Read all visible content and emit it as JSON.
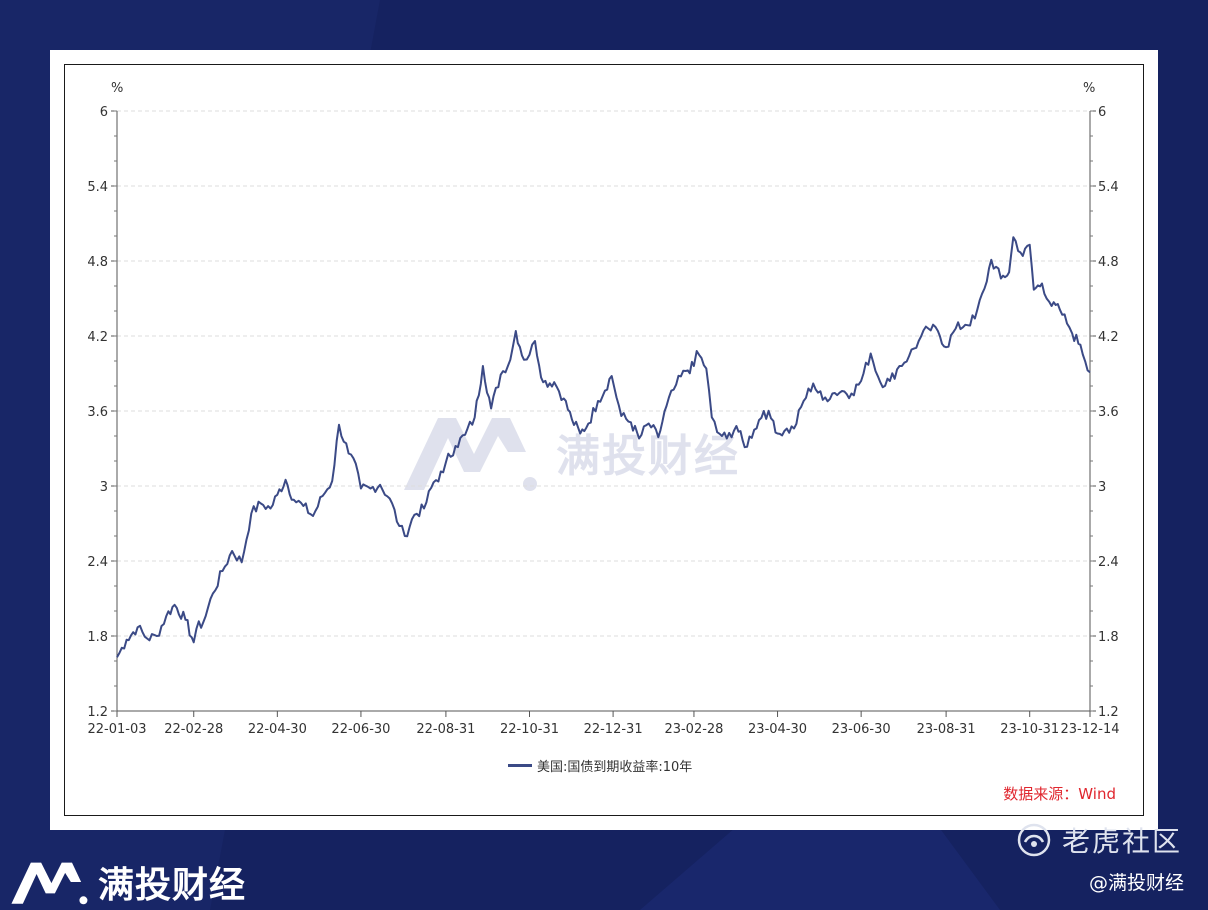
{
  "colors": {
    "background": "#152260",
    "line": "#3b4a86",
    "source": "#e0262e",
    "grid": "#dddddd"
  },
  "watermark": {
    "text": "满投财经"
  },
  "footer": {
    "brand": "满投财经",
    "community": "老虎社区",
    "handle": "@满投财经"
  },
  "legend": {
    "label": "美国:国债到期收益率:10年"
  },
  "source": {
    "text": "数据来源：Wind"
  },
  "chart_data": {
    "type": "line",
    "title": "",
    "unit_left": "%",
    "unit_right": "%",
    "ylim": [
      1.2,
      6
    ],
    "yticks": [
      "6",
      "5.4",
      "4.8",
      "4.2",
      "3.6",
      "3",
      "2.4",
      "1.8",
      "1.2"
    ],
    "ytick_values": [
      6,
      5.4,
      4.8,
      4.2,
      3.6,
      3,
      2.4,
      1.8,
      1.2
    ],
    "xticks": [
      "22-01-03",
      "22-02-28",
      "22-04-30",
      "22-06-30",
      "22-08-31",
      "22-10-31",
      "22-12-31",
      "23-02-28",
      "23-04-30",
      "23-06-30",
      "23-08-31",
      "23-10-31",
      "23-12-14"
    ],
    "grid": true,
    "legend_position": "bottom",
    "series": [
      {
        "name": "美国:国债到期收益率:10年",
        "x": [
          "2022-01-03",
          "2022-01-10",
          "2022-01-18",
          "2022-01-25",
          "2022-02-01",
          "2022-02-08",
          "2022-02-14",
          "2022-02-22",
          "2022-02-28",
          "2022-03-02",
          "2022-03-07",
          "2022-03-14",
          "2022-03-21",
          "2022-03-28",
          "2022-04-04",
          "2022-04-11",
          "2022-04-18",
          "2022-04-25",
          "2022-04-30",
          "2022-05-06",
          "2022-05-12",
          "2022-05-19",
          "2022-05-26",
          "2022-06-02",
          "2022-06-09",
          "2022-06-14",
          "2022-06-21",
          "2022-06-28",
          "2022-06-30",
          "2022-07-07",
          "2022-07-14",
          "2022-07-21",
          "2022-07-28",
          "2022-08-01",
          "2022-08-08",
          "2022-08-15",
          "2022-08-22",
          "2022-08-29",
          "2022-08-31",
          "2022-09-07",
          "2022-09-14",
          "2022-09-21",
          "2022-09-27",
          "2022-10-03",
          "2022-10-10",
          "2022-10-17",
          "2022-10-21",
          "2022-10-27",
          "2022-10-31",
          "2022-11-04",
          "2022-11-10",
          "2022-11-18",
          "2022-11-25",
          "2022-12-01",
          "2022-12-07",
          "2022-12-13",
          "2022-12-20",
          "2022-12-30",
          "2023-01-06",
          "2023-01-13",
          "2023-01-19",
          "2023-01-26",
          "2023-02-02",
          "2023-02-08",
          "2023-02-15",
          "2023-02-22",
          "2023-02-28",
          "2023-03-02",
          "2023-03-09",
          "2023-03-13",
          "2023-03-17",
          "2023-03-24",
          "2023-03-31",
          "2023-04-06",
          "2023-04-13",
          "2023-04-20",
          "2023-04-27",
          "2023-04-30",
          "2023-05-05",
          "2023-05-12",
          "2023-05-19",
          "2023-05-26",
          "2023-06-02",
          "2023-06-09",
          "2023-06-16",
          "2023-06-23",
          "2023-06-30",
          "2023-07-07",
          "2023-07-14",
          "2023-07-21",
          "2023-07-28",
          "2023-08-04",
          "2023-08-11",
          "2023-08-18",
          "2023-08-25",
          "2023-08-31",
          "2023-09-07",
          "2023-09-14",
          "2023-09-21",
          "2023-09-28",
          "2023-10-03",
          "2023-10-10",
          "2023-10-16",
          "2023-10-19",
          "2023-10-26",
          "2023-10-31",
          "2023-11-03",
          "2023-11-09",
          "2023-11-16",
          "2023-11-22",
          "2023-11-29",
          "2023-12-01",
          "2023-12-07",
          "2023-12-14"
        ],
        "values": [
          1.63,
          1.77,
          1.87,
          1.78,
          1.8,
          1.96,
          2.05,
          1.93,
          1.75,
          1.86,
          1.91,
          2.14,
          2.32,
          2.48,
          2.39,
          2.78,
          2.86,
          2.82,
          2.93,
          3.05,
          2.89,
          2.84,
          2.76,
          2.92,
          3.04,
          3.49,
          3.26,
          3.1,
          2.98,
          2.98,
          3.01,
          2.9,
          2.68,
          2.6,
          2.77,
          2.82,
          3.03,
          3.11,
          3.19,
          3.32,
          3.41,
          3.55,
          3.96,
          3.62,
          3.89,
          4.01,
          4.24,
          4.01,
          4.05,
          4.16,
          3.83,
          3.83,
          3.7,
          3.53,
          3.42,
          3.5,
          3.68,
          3.88,
          3.56,
          3.51,
          3.38,
          3.5,
          3.39,
          3.64,
          3.81,
          3.92,
          3.96,
          4.08,
          3.94,
          3.55,
          3.43,
          3.38,
          3.48,
          3.31,
          3.45,
          3.6,
          3.52,
          3.42,
          3.44,
          3.46,
          3.68,
          3.82,
          3.69,
          3.74,
          3.76,
          3.74,
          3.84,
          4.06,
          3.83,
          3.84,
          3.96,
          4.04,
          4.16,
          4.26,
          4.24,
          4.11,
          4.26,
          4.29,
          4.34,
          4.58,
          4.81,
          4.66,
          4.71,
          4.99,
          4.84,
          4.93,
          4.57,
          4.62,
          4.44,
          4.41,
          4.27,
          4.22,
          4.13,
          3.91
        ]
      }
    ]
  }
}
